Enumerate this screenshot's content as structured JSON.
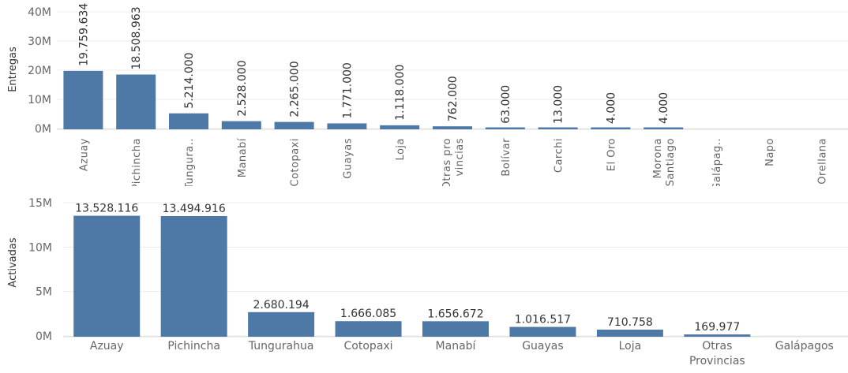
{
  "colors": {
    "bar": "#4e79a7",
    "grid": "#ececec",
    "axis_text": "#666666",
    "label": "#333333"
  },
  "chart_data": [
    {
      "type": "bar",
      "ylabel": "Entregas",
      "ylim": [
        0,
        40000000
      ],
      "yticks": [
        0,
        10000000,
        20000000,
        30000000,
        40000000
      ],
      "ytick_labels": [
        "0M",
        "10M",
        "20M",
        "30M",
        "40M"
      ],
      "grid": true,
      "label_orientation": "vertical",
      "categories": [
        [
          "Azuay"
        ],
        [
          "Pichincha"
        ],
        [
          "Tungura.."
        ],
        [
          "Manabí"
        ],
        [
          "Cotopaxi"
        ],
        [
          "Guayas"
        ],
        [
          "Loja"
        ],
        [
          "Otras pro",
          "vincias"
        ],
        [
          "Bolívar"
        ],
        [
          "Carchi"
        ],
        [
          "El Oro"
        ],
        [
          "Morona",
          "Santiago"
        ],
        [
          "Galápag.."
        ],
        [
          "Napo"
        ],
        [
          "Orellana"
        ]
      ],
      "values": [
        19759634,
        18508963,
        5214000,
        2528000,
        2265000,
        1771000,
        1118000,
        762000,
        63000,
        13000,
        4000,
        4000,
        0,
        0,
        0
      ],
      "data_labels": [
        "19.759.634",
        "18.508.963",
        "5.214.000",
        "2.528.000",
        "2.265.000",
        "1.771.000",
        "1.118.000",
        "762.000",
        "63.000",
        "13.000",
        "4.000",
        "4.000",
        "",
        "",
        ""
      ]
    },
    {
      "type": "bar",
      "ylabel": "Activadas",
      "ylim": [
        0,
        15000000
      ],
      "yticks": [
        0,
        5000000,
        10000000,
        15000000
      ],
      "ytick_labels": [
        "0M",
        "5M",
        "10M",
        "15M"
      ],
      "grid": true,
      "label_orientation": "horizontal",
      "categories": [
        [
          "Azuay"
        ],
        [
          "Pichincha"
        ],
        [
          "Tungurahua"
        ],
        [
          "Cotopaxi"
        ],
        [
          "Manabí"
        ],
        [
          "Guayas"
        ],
        [
          "Loja"
        ],
        [
          "Otras",
          "Provincias"
        ],
        [
          "Galápagos"
        ]
      ],
      "values": [
        13528116,
        13494916,
        2680194,
        1666085,
        1656672,
        1016517,
        710758,
        169977,
        0
      ],
      "data_labels": [
        "13.528.116",
        "13.494.916",
        "2.680.194",
        "1.666.085",
        "1.656.672",
        "1.016.517",
        "710.758",
        "169.977",
        ""
      ]
    }
  ]
}
